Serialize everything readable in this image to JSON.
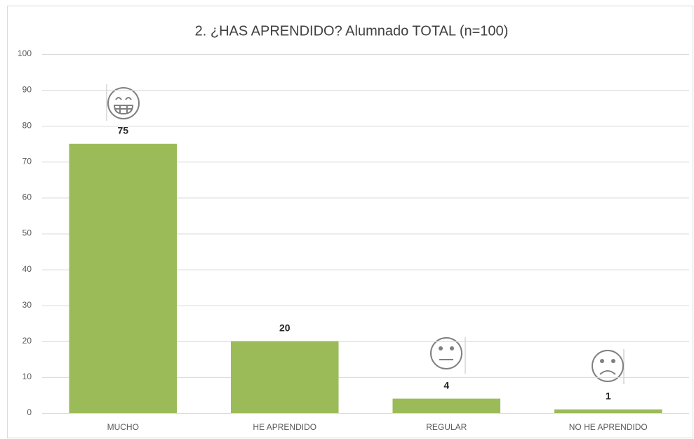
{
  "chart_data": {
    "type": "bar",
    "title": "2. ¿HAS APRENDIDO? Alumnado TOTAL (n=100)",
    "categories": [
      "MUCHO",
      "HE APRENDIDO",
      "REGULAR",
      "NO HE APRENDIDO"
    ],
    "values": [
      75,
      20,
      4,
      1
    ],
    "color": "#9bbb59",
    "ylim": [
      0,
      100
    ],
    "yticks": [
      0,
      10,
      20,
      30,
      40,
      50,
      60,
      70,
      80,
      90,
      100
    ],
    "grid": true
  }
}
